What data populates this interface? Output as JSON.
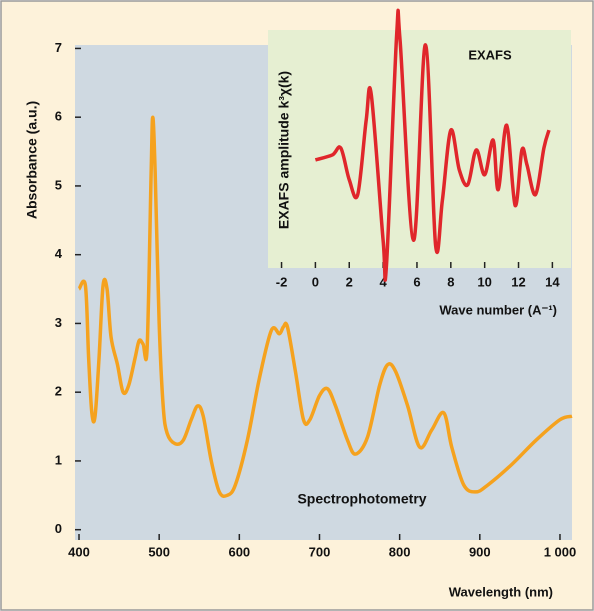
{
  "chart_data": [
    {
      "type": "line",
      "annotation": "Spectrophotometry",
      "x_label": "Wavelength (nm)",
      "y_label": "Absorbance (a.u.)",
      "x": [
        400,
        408,
        412,
        416,
        420,
        425,
        430,
        435,
        440,
        448,
        455,
        462,
        470,
        475,
        480,
        485,
        490,
        492,
        495,
        500,
        505,
        510,
        520,
        530,
        540,
        548,
        555,
        565,
        575,
        585,
        595,
        610,
        625,
        640,
        650,
        655,
        660,
        670,
        680,
        688,
        700,
        710,
        720,
        735,
        745,
        760,
        775,
        785,
        795,
        810,
        825,
        840,
        855,
        865,
        880,
        895,
        910,
        940,
        970,
        1000,
        1015
      ],
      "series": [
        {
          "name": "Spectrophotometry",
          "color": "#f5a21e",
          "values": [
            3.5,
            3.55,
            2.5,
            1.7,
            1.65,
            2.5,
            3.55,
            3.5,
            2.8,
            2.4,
            2.0,
            2.1,
            2.5,
            2.75,
            2.7,
            2.65,
            5.2,
            6.0,
            5.2,
            3.0,
            1.8,
            1.4,
            1.25,
            1.3,
            1.6,
            1.8,
            1.65,
            1.0,
            0.55,
            0.5,
            0.65,
            1.3,
            2.2,
            2.9,
            2.85,
            2.95,
            2.95,
            2.3,
            1.6,
            1.6,
            1.95,
            2.05,
            1.8,
            1.3,
            1.1,
            1.35,
            2.1,
            2.4,
            2.3,
            1.8,
            1.2,
            1.45,
            1.7,
            1.2,
            0.65,
            0.55,
            0.65,
            0.95,
            1.3,
            1.6,
            1.65
          ]
        }
      ],
      "xlim": [
        395,
        1015
      ],
      "xticks": [
        400,
        500,
        600,
        700,
        800,
        900,
        {
          "value": 1000,
          "label": "1 000"
        }
      ],
      "ylim": [
        -0.15,
        7.05
      ],
      "yticks": [
        0,
        1,
        2,
        3,
        4,
        5,
        6,
        7
      ],
      "background": "#cfd9e1"
    },
    {
      "type": "line",
      "title": "EXAFS",
      "x_label": "Wave number (A⁻¹)",
      "y_label": "EXAFS amplitude k³χ(k)",
      "x": [
        0,
        1,
        1.5,
        2,
        2.5,
        3,
        3.3,
        4,
        4.2,
        4.8,
        5,
        5.8,
        6.5,
        7.1,
        7.5,
        8,
        8.5,
        9,
        9.5,
        10,
        10.5,
        10.8,
        11.3,
        11.8,
        12.2,
        12.5,
        13,
        13.5,
        13.8
      ],
      "series": [
        {
          "name": "EXAFS",
          "color": "#e0262b",
          "values": [
            -0.11,
            -0.06,
            0.01,
            -0.31,
            -0.46,
            0.29,
            0.55,
            -0.92,
            -1.17,
            1.15,
            1.1,
            -0.92,
            1.05,
            -0.97,
            -0.52,
            0.19,
            -0.21,
            -0.36,
            -0.01,
            -0.26,
            0.09,
            -0.41,
            0.24,
            -0.57,
            -0.01,
            -0.16,
            -0.46,
            0.01,
            0.19
          ]
        }
      ],
      "xlim": [
        -2.8,
        15.1
      ],
      "xticks": [
        -2,
        0,
        2,
        4,
        6,
        8,
        10,
        12,
        14
      ],
      "ylim": [
        -1.2,
        1.2
      ],
      "background": "#e6efd2"
    }
  ]
}
